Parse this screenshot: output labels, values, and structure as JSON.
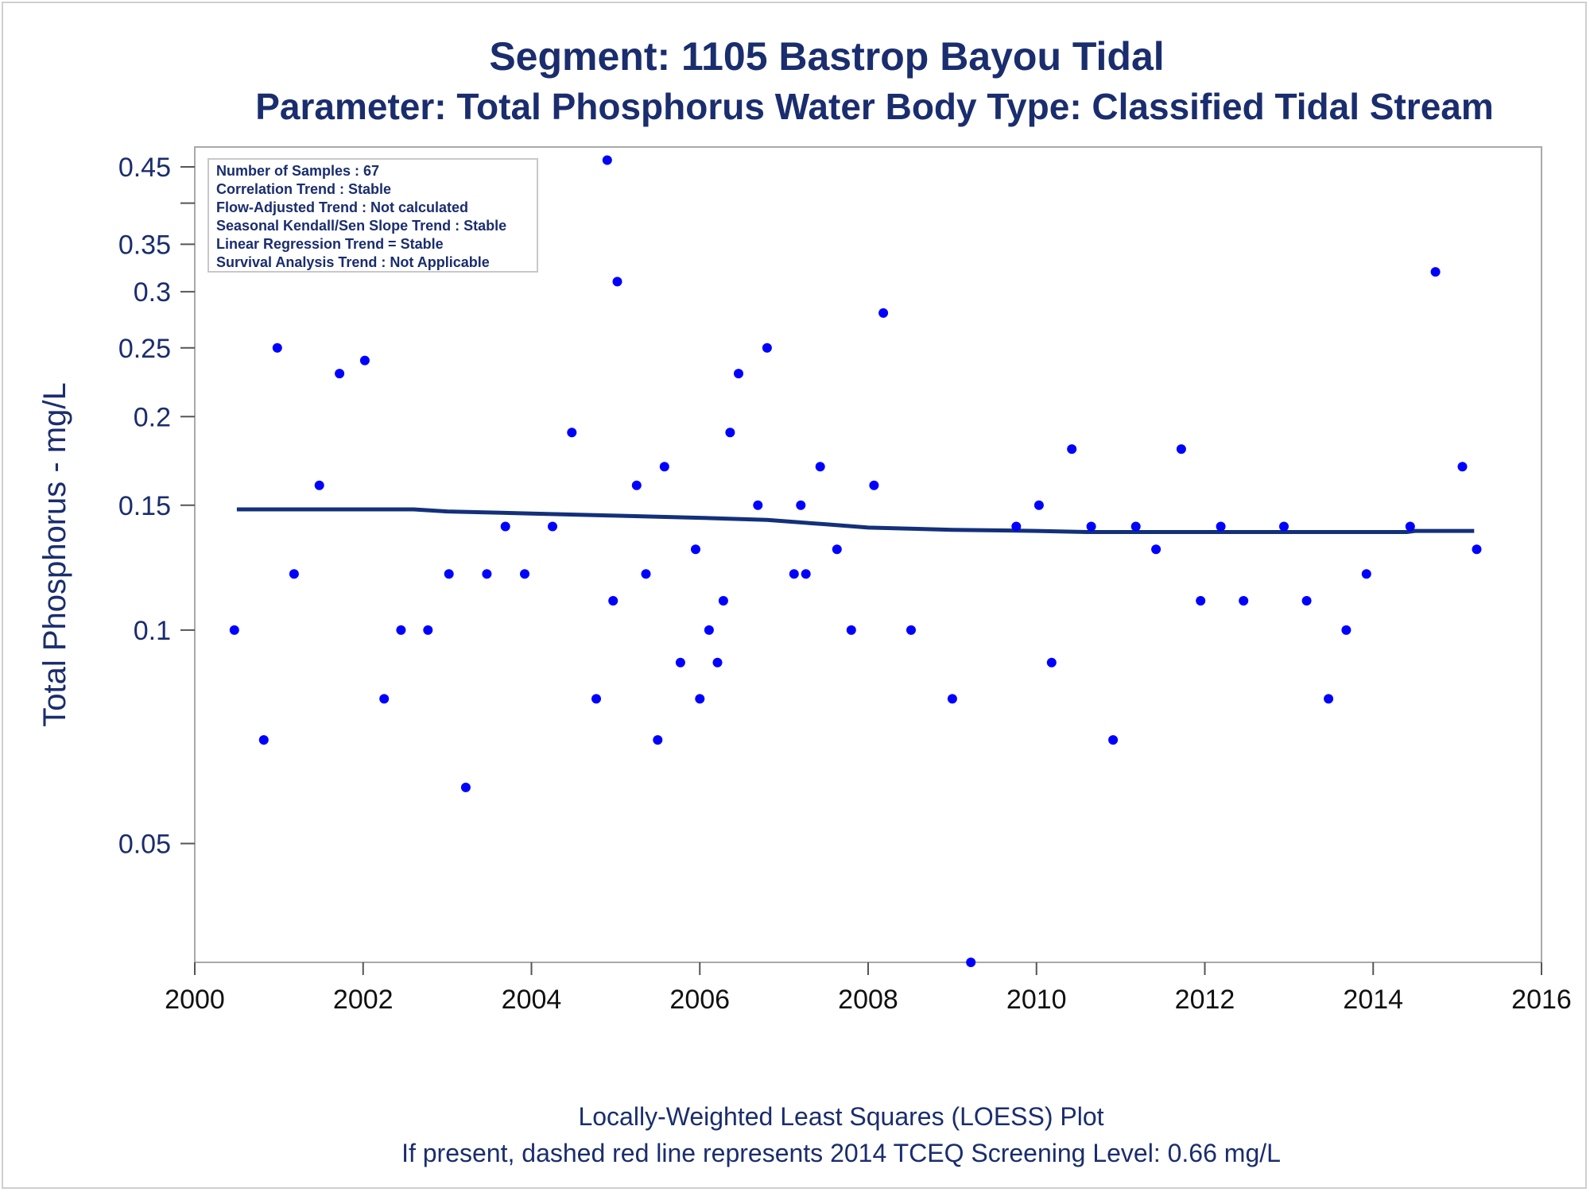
{
  "chart_data": {
    "type": "scatter",
    "title": "Segment: 1105  Bastrop Bayou Tidal",
    "subtitle": "Parameter: Total Phosphorus   Water Body Type: Classified Tidal Stream",
    "xlabel": "",
    "ylabel": "Total Phosphorus - mg/L",
    "xlim": [
      2000,
      2016
    ],
    "ylim": [
      0.034,
      0.48
    ],
    "yscale": "log",
    "x_ticks": [
      "2000",
      "2002",
      "2004",
      "2006",
      "2008",
      "2010",
      "2012",
      "2014",
      "2016"
    ],
    "y_ticks": [
      "0.05",
      "0.1",
      "0.15",
      "0.2",
      "0.25",
      "0.3",
      "0.35",
      "0.45"
    ],
    "grid": false,
    "point_color": "#0000ff",
    "line_color": "#13307a",
    "info_box": [
      "Number of Samples : 67",
      "Correlation Trend : Stable",
      "Flow-Adjusted Trend : Not calculated",
      "Seasonal Kendall/Sen Slope Trend : Stable",
      "Linear Regression Trend = Stable",
      "Survival Analysis Trend : Not Applicable"
    ],
    "series": [
      {
        "type": "scatter",
        "points": [
          [
            2000.47,
            0.1
          ],
          [
            2000.82,
            0.07
          ],
          [
            2000.98,
            0.25
          ],
          [
            2001.18,
            0.12
          ],
          [
            2001.48,
            0.16
          ],
          [
            2001.72,
            0.23
          ],
          [
            2002.02,
            0.24
          ],
          [
            2002.25,
            0.08
          ],
          [
            2002.45,
            0.1
          ],
          [
            2002.77,
            0.1
          ],
          [
            2003.02,
            0.12
          ],
          [
            2003.22,
            0.06
          ],
          [
            2003.47,
            0.12
          ],
          [
            2003.69,
            0.14
          ],
          [
            2003.92,
            0.12
          ],
          [
            2004.25,
            0.14
          ],
          [
            2004.48,
            0.19
          ],
          [
            2004.77,
            0.08
          ],
          [
            2004.9,
            0.46
          ],
          [
            2004.97,
            0.11
          ],
          [
            2005.02,
            0.31
          ],
          [
            2005.25,
            0.16
          ],
          [
            2005.36,
            0.12
          ],
          [
            2005.5,
            0.07
          ],
          [
            2005.58,
            0.17
          ],
          [
            2005.77,
            0.09
          ],
          [
            2005.95,
            0.13
          ],
          [
            2006.0,
            0.08
          ],
          [
            2006.11,
            0.1
          ],
          [
            2006.21,
            0.09
          ],
          [
            2006.28,
            0.11
          ],
          [
            2006.36,
            0.19
          ],
          [
            2006.46,
            0.23
          ],
          [
            2006.69,
            0.15
          ],
          [
            2006.8,
            0.25
          ],
          [
            2007.12,
            0.12
          ],
          [
            2007.2,
            0.15
          ],
          [
            2007.26,
            0.12
          ],
          [
            2007.43,
            0.17
          ],
          [
            2007.63,
            0.13
          ],
          [
            2007.8,
            0.1
          ],
          [
            2008.07,
            0.16
          ],
          [
            2008.18,
            0.28
          ],
          [
            2008.51,
            0.1
          ],
          [
            2009.0,
            0.08
          ],
          [
            2009.22,
            0.034
          ],
          [
            2009.76,
            0.14
          ],
          [
            2010.03,
            0.15
          ],
          [
            2010.18,
            0.09
          ],
          [
            2010.42,
            0.18
          ],
          [
            2010.65,
            0.14
          ],
          [
            2010.91,
            0.07
          ],
          [
            2011.18,
            0.14
          ],
          [
            2011.42,
            0.13
          ],
          [
            2011.72,
            0.18
          ],
          [
            2011.95,
            0.11
          ],
          [
            2012.19,
            0.14
          ],
          [
            2012.46,
            0.11
          ],
          [
            2012.94,
            0.14
          ],
          [
            2013.21,
            0.11
          ],
          [
            2013.47,
            0.08
          ],
          [
            2013.68,
            0.1
          ],
          [
            2013.92,
            0.12
          ],
          [
            2014.44,
            0.14
          ],
          [
            2014.74,
            0.32
          ],
          [
            2015.06,
            0.17
          ],
          [
            2015.23,
            0.13
          ]
        ]
      },
      {
        "type": "line",
        "name": "LOESS",
        "points": [
          [
            2000.5,
            0.148
          ],
          [
            2001.0,
            0.148
          ],
          [
            2002.0,
            0.148
          ],
          [
            2002.6,
            0.148
          ],
          [
            2003.0,
            0.147
          ],
          [
            2004.0,
            0.146
          ],
          [
            2005.0,
            0.145
          ],
          [
            2006.0,
            0.144
          ],
          [
            2006.8,
            0.143
          ],
          [
            2007.5,
            0.141
          ],
          [
            2008.0,
            0.1395
          ],
          [
            2008.5,
            0.139
          ],
          [
            2009.0,
            0.1385
          ],
          [
            2010.0,
            0.138
          ],
          [
            2010.6,
            0.1375
          ],
          [
            2011.0,
            0.1375
          ],
          [
            2012.0,
            0.1375
          ],
          [
            2013.0,
            0.1375
          ],
          [
            2014.4,
            0.1375
          ],
          [
            2014.5,
            0.138
          ],
          [
            2015.2,
            0.138
          ]
        ]
      }
    ]
  },
  "footnotes": {
    "line1": "Locally-Weighted Least Squares (LOESS) Plot",
    "line2": "If present, dashed red line represents 2014 TCEQ Screening Level: 0.66 mg/L"
  }
}
